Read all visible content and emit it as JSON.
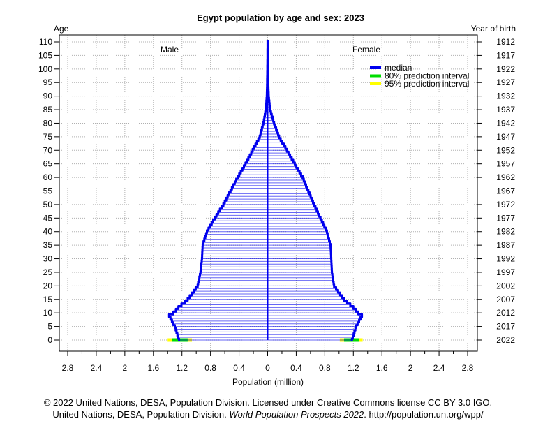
{
  "chart_data": {
    "type": "bar",
    "title": "Egypt population by age and sex: 2023",
    "left_axis_title": "Age",
    "right_axis_title": "Year of birth",
    "xlabel": "Population (million)",
    "male_label": "Male",
    "female_label": "Female",
    "xlim": [
      -2.8,
      2.8
    ],
    "ylim": [
      0,
      110
    ],
    "x_ticks": [
      {
        "value": -2.8,
        "label": "2.8"
      },
      {
        "value": -2.4,
        "label": "2.4"
      },
      {
        "value": -2.0,
        "label": "2"
      },
      {
        "value": -1.6,
        "label": "1.6"
      },
      {
        "value": -1.2,
        "label": "1.2"
      },
      {
        "value": -0.8,
        "label": "0.8"
      },
      {
        "value": -0.4,
        "label": "0.4"
      },
      {
        "value": 0,
        "label": "0"
      },
      {
        "value": 0.4,
        "label": "0.4"
      },
      {
        "value": 0.8,
        "label": "0.8"
      },
      {
        "value": 1.2,
        "label": "1.2"
      },
      {
        "value": 1.6,
        "label": "1.6"
      },
      {
        "value": 2.0,
        "label": "2"
      },
      {
        "value": 2.4,
        "label": "2.4"
      },
      {
        "value": 2.8,
        "label": "2.8"
      }
    ],
    "age_ticks": [
      0,
      5,
      10,
      15,
      20,
      25,
      30,
      35,
      40,
      45,
      50,
      55,
      60,
      65,
      70,
      75,
      80,
      85,
      90,
      95,
      100,
      105,
      110
    ],
    "age_tick_labels": [
      "0",
      "5",
      "10",
      "15",
      "20",
      "25",
      "30",
      "35",
      "40",
      "45",
      "50",
      "55",
      "60",
      "65",
      "70",
      "75",
      "80",
      "85",
      "90",
      "95",
      "100",
      "105",
      "110"
    ],
    "birth_year_ticks": [
      {
        "age": 110,
        "label": "1912"
      },
      {
        "age": 105,
        "label": "1917"
      },
      {
        "age": 100,
        "label": "1922"
      },
      {
        "age": 95,
        "label": "1927"
      },
      {
        "age": 90,
        "label": "1932"
      },
      {
        "age": 85,
        "label": "1937"
      },
      {
        "age": 80,
        "label": "1942"
      },
      {
        "age": 75,
        "label": "1947"
      },
      {
        "age": 70,
        "label": "1952"
      },
      {
        "age": 65,
        "label": "1957"
      },
      {
        "age": 60,
        "label": "1962"
      },
      {
        "age": 55,
        "label": "1967"
      },
      {
        "age": 50,
        "label": "1972"
      },
      {
        "age": 45,
        "label": "1977"
      },
      {
        "age": 40,
        "label": "1982"
      },
      {
        "age": 35,
        "label": "1987"
      },
      {
        "age": 30,
        "label": "1992"
      },
      {
        "age": 25,
        "label": "1997"
      },
      {
        "age": 20,
        "label": "2002"
      },
      {
        "age": 15,
        "label": "2007"
      },
      {
        "age": 10,
        "label": "2012"
      },
      {
        "age": 5,
        "label": "2017"
      },
      {
        "age": 0,
        "label": "2022"
      }
    ],
    "legend": {
      "position": "top-right",
      "entries": [
        {
          "label": "median",
          "color": "#0000ee"
        },
        {
          "label": "80% prediction interval",
          "color": "#00dd00"
        },
        {
          "label": "95% prediction interval",
          "color": "#ffff00"
        }
      ]
    },
    "grid": true,
    "colors": {
      "median": "#0000ee",
      "bar_fill": "#c8c8f4",
      "pi80": "#00dd00",
      "pi95": "#ffff00",
      "grid": "#b0b0b0"
    },
    "series": [
      {
        "name": "Male",
        "key_ages": [
          0,
          5,
          9,
          10,
          12,
          15,
          20,
          25,
          30,
          35,
          40,
          45,
          50,
          55,
          60,
          65,
          70,
          75,
          80,
          85,
          90,
          95,
          100,
          105,
          110
        ],
        "key_values": [
          1.24,
          1.3,
          1.38,
          1.32,
          1.25,
          1.12,
          0.98,
          0.94,
          0.92,
          0.91,
          0.85,
          0.74,
          0.62,
          0.52,
          0.42,
          0.31,
          0.21,
          0.11,
          0.06,
          0.025,
          0.012,
          0.007,
          0.004,
          0.002,
          0.001
        ]
      },
      {
        "name": "Female",
        "key_ages": [
          0,
          5,
          9,
          10,
          12,
          15,
          20,
          25,
          30,
          35,
          40,
          45,
          50,
          55,
          60,
          65,
          70,
          75,
          80,
          85,
          90,
          95,
          100,
          105,
          110
        ],
        "key_values": [
          1.18,
          1.24,
          1.32,
          1.27,
          1.2,
          1.07,
          0.93,
          0.9,
          0.89,
          0.88,
          0.83,
          0.74,
          0.65,
          0.57,
          0.49,
          0.38,
          0.27,
          0.16,
          0.09,
          0.035,
          0.015,
          0.008,
          0.004,
          0.002,
          0.001
        ]
      }
    ],
    "age0_intervals": {
      "male": {
        "pi80": [
          1.12,
          1.34
        ],
        "pi95": [
          1.06,
          1.4
        ]
      },
      "female": {
        "pi80": [
          1.07,
          1.28
        ],
        "pi95": [
          1.01,
          1.33
        ]
      }
    }
  },
  "footer": {
    "line1": "© 2022 United Nations, DESA, Population Division. Licensed under Creative Commons license CC BY 3.0 IGO.",
    "line2_prefix": "United Nations, DESA, Population Division. ",
    "line2_italic": "World Population Prospects 2022",
    "line2_suffix": ". http://population.un.org/wpp/"
  }
}
